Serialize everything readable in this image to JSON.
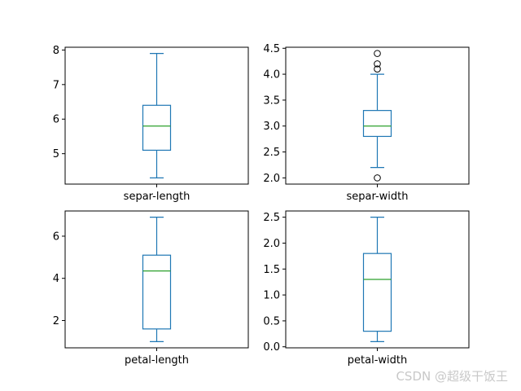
{
  "chart_data": [
    {
      "type": "box",
      "category": "separ-length",
      "ylim": [
        4.12,
        8.08
      ],
      "yticks": [
        5,
        6,
        7,
        8
      ],
      "tick_labels": [
        "5",
        "6",
        "7",
        "8"
      ],
      "whisker_low": 4.3,
      "q1": 5.1,
      "median": 5.8,
      "q3": 6.4,
      "whisker_high": 7.9,
      "outliers": []
    },
    {
      "type": "box",
      "category": "separ-width",
      "ylim": [
        1.88,
        4.52
      ],
      "yticks": [
        2.0,
        2.5,
        3.0,
        3.5,
        4.0,
        4.5
      ],
      "tick_labels": [
        "2.0",
        "2.5",
        "3.0",
        "3.5",
        "4.0",
        "4.5"
      ],
      "whisker_low": 2.2,
      "q1": 2.8,
      "median": 3.0,
      "q3": 3.3,
      "whisker_high": 4.0,
      "outliers": [
        2.0,
        4.1,
        4.2,
        4.4
      ]
    },
    {
      "type": "box",
      "category": "petal-length",
      "ylim": [
        0.705,
        7.195
      ],
      "yticks": [
        2,
        4,
        6
      ],
      "tick_labels": [
        "2",
        "4",
        "6"
      ],
      "whisker_low": 1.0,
      "q1": 1.6,
      "median": 4.35,
      "q3": 5.1,
      "whisker_high": 6.9,
      "outliers": []
    },
    {
      "type": "box",
      "category": "petal-width",
      "ylim": [
        -0.02,
        2.62
      ],
      "yticks": [
        0.0,
        0.5,
        1.0,
        1.5,
        2.0,
        2.5
      ],
      "tick_labels": [
        "0.0",
        "0.5",
        "1.0",
        "1.5",
        "2.0",
        "2.5"
      ],
      "whisker_low": 0.1,
      "q1": 0.3,
      "median": 1.3,
      "q3": 1.8,
      "whisker_high": 2.5,
      "outliers": []
    }
  ],
  "colors": {
    "box": "#1f77b4",
    "median": "#2ca02c",
    "axes": "#000000",
    "watermark": "#c8c8c8"
  },
  "watermark": "CSDN @超级干饭王"
}
